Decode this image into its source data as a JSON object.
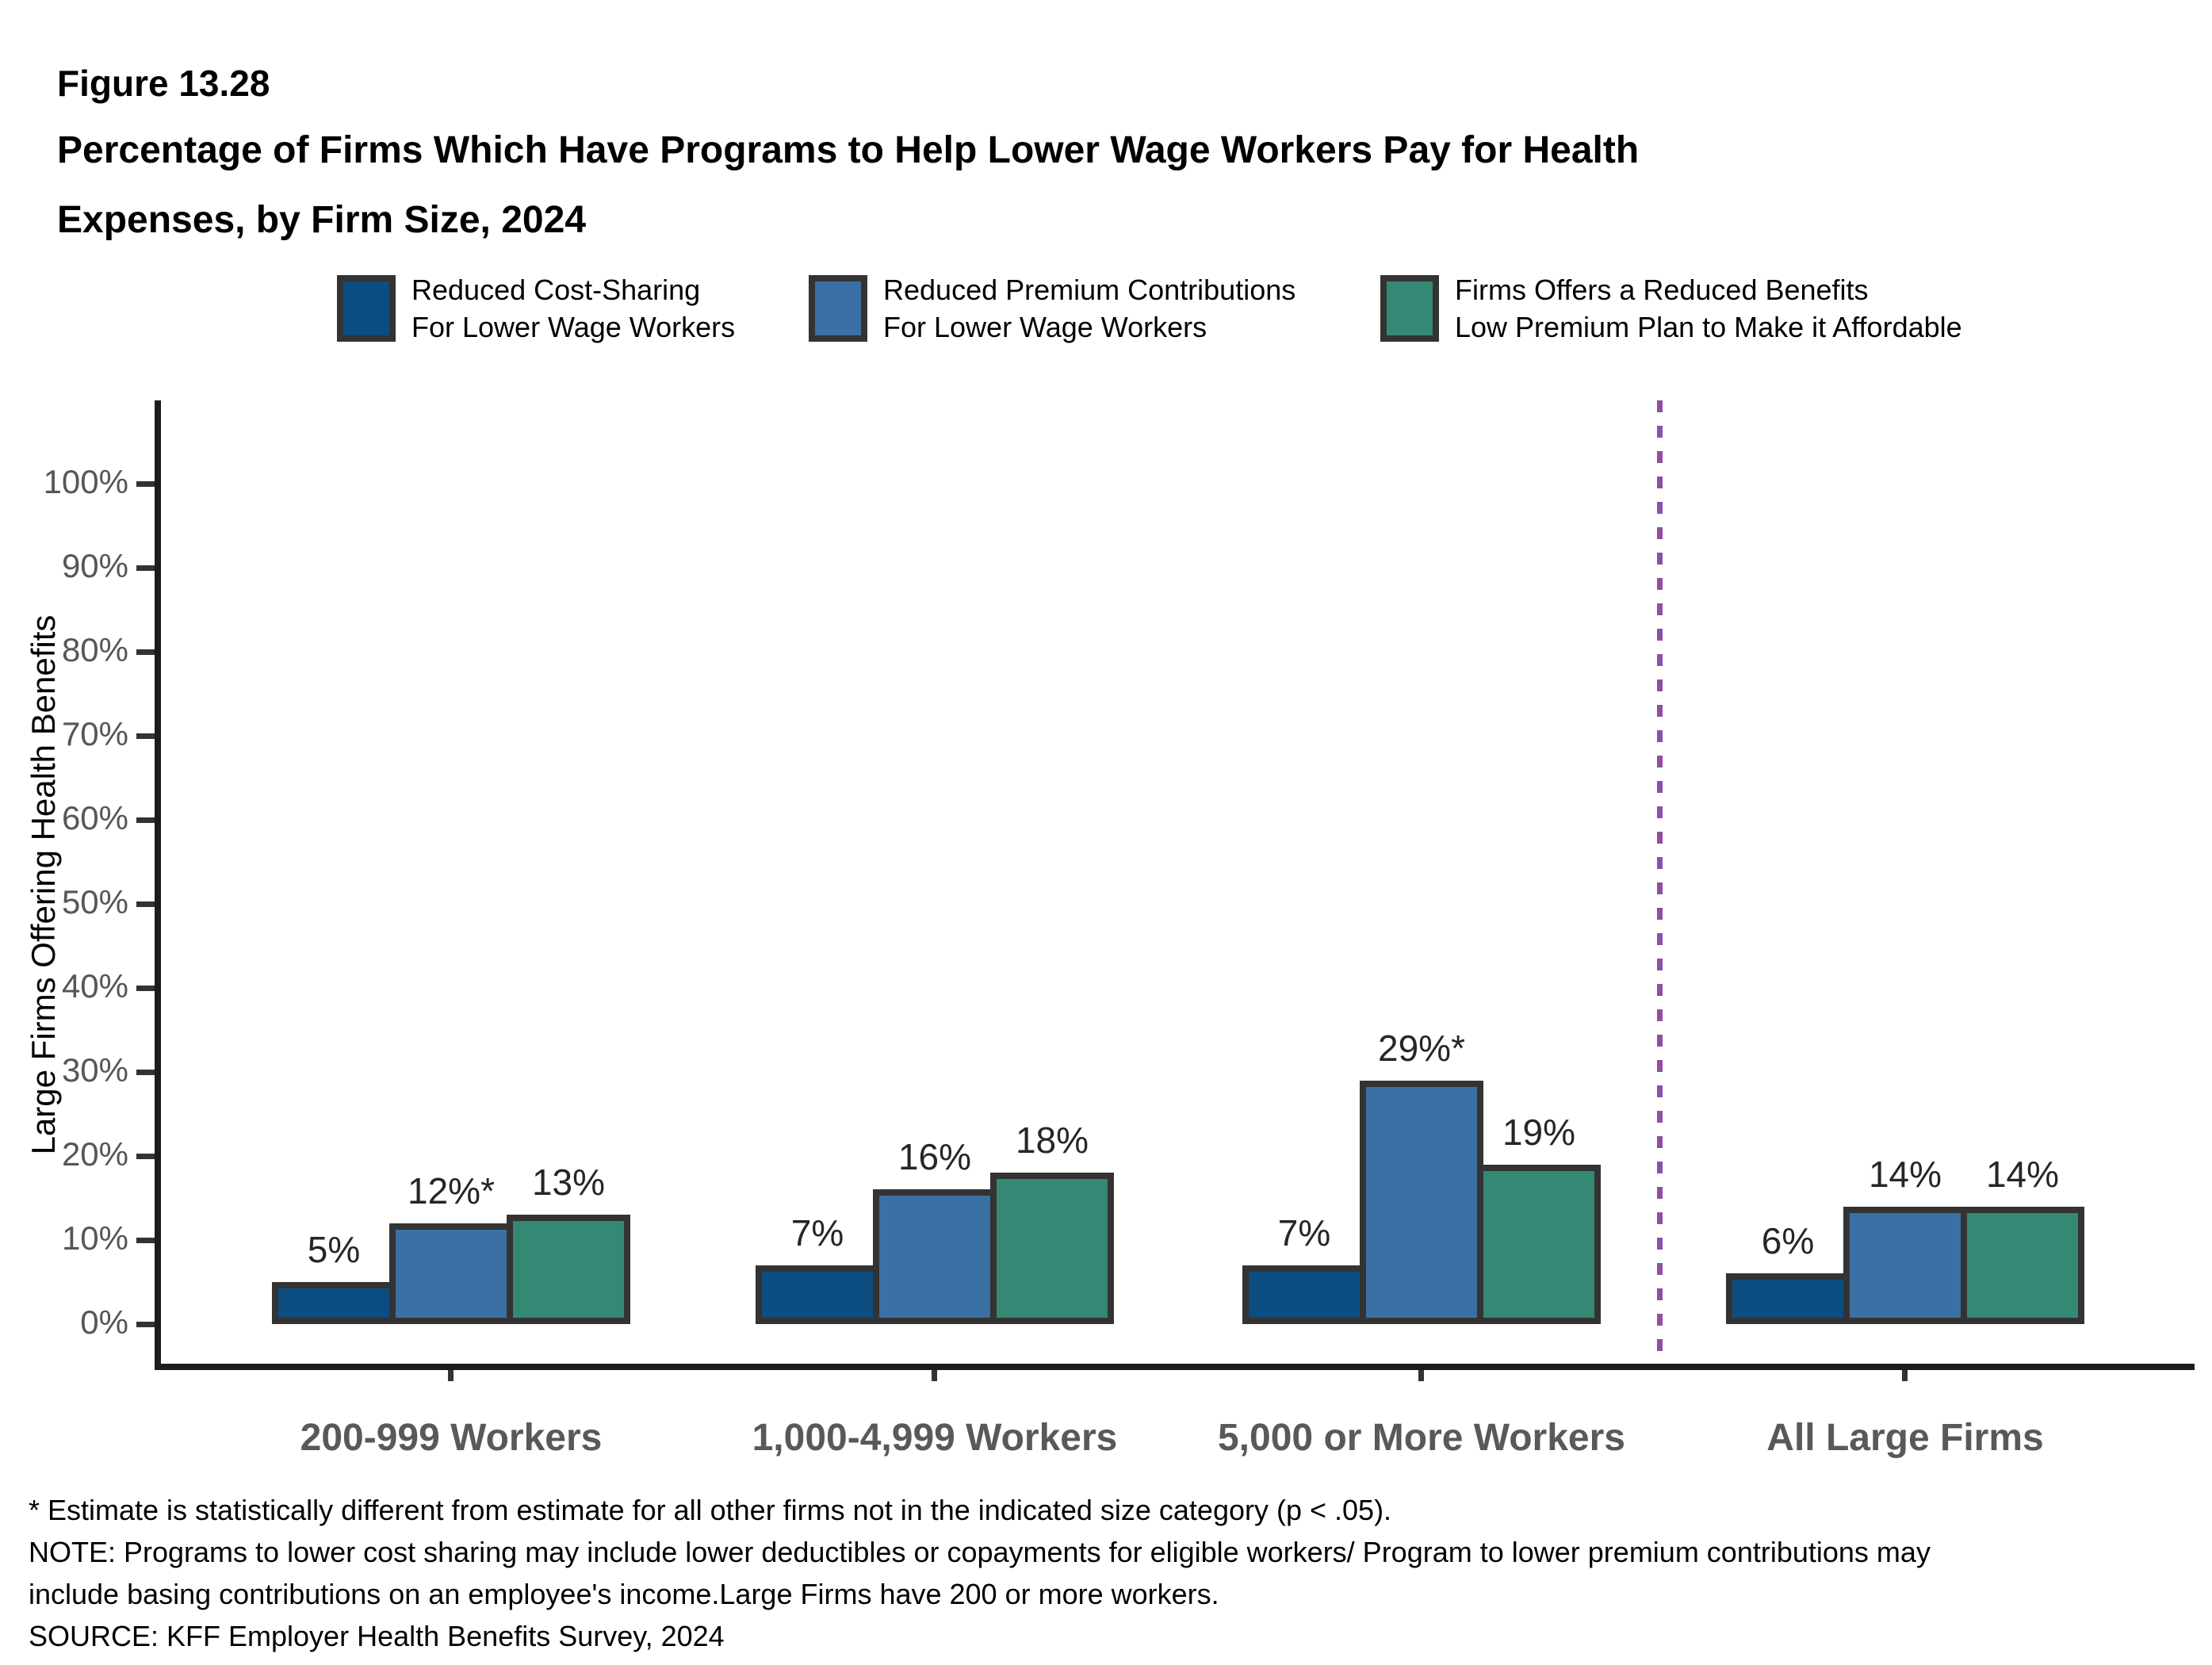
{
  "figure_label": "Figure 13.28",
  "title_lines": [
    "Percentage of Firms Which Have Programs to Help Lower Wage Workers Pay for Health",
    "Expenses, by Firm Size, 2024"
  ],
  "legend": {
    "items": [
      {
        "line1": "Reduced Cost-Sharing",
        "line2": "For Lower Wage Workers",
        "color": "#0c4d82"
      },
      {
        "line1": "Reduced Premium Contributions",
        "line2": "For Lower Wage Workers",
        "color": "#3b70a4"
      },
      {
        "line1": "Firms Offers a Reduced Benefits",
        "line2": "Low Premium Plan to Make it Affordable",
        "color": "#358873"
      }
    ]
  },
  "chart_data": {
    "type": "bar",
    "title": "Percentage of Firms Which Have Programs to Help Lower Wage Workers Pay for Health Expenses, by Firm Size, 2024",
    "figure_label": "Figure 13.28",
    "xlabel": "",
    "ylabel": "Large Firms Offering Health Benefits",
    "ylim": [
      0,
      100
    ],
    "grid": false,
    "legend_position": "top",
    "y_ticks": [
      "0%",
      "10%",
      "20%",
      "30%",
      "40%",
      "50%",
      "60%",
      "70%",
      "80%",
      "90%",
      "100%"
    ],
    "categories": [
      "200-999 Workers",
      "1,000-4,999 Workers",
      "5,000 or More Workers",
      "All Large Firms"
    ],
    "series": [
      {
        "name": "Reduced Cost-Sharing For Lower Wage Workers",
        "color": "#0c4d82",
        "values": [
          5,
          7,
          7,
          6
        ],
        "labels": [
          "5%",
          "7%",
          "7%",
          "6%"
        ]
      },
      {
        "name": "Reduced Premium Contributions For Lower Wage Workers",
        "color": "#3b70a4",
        "values": [
          12,
          16,
          29,
          14
        ],
        "labels": [
          "12%*",
          "16%",
          "29%*",
          "14%"
        ]
      },
      {
        "name": "Firms Offers a Reduced Benefits Low Premium Plan to Make it Affordable",
        "color": "#358873",
        "values": [
          13,
          18,
          19,
          14
        ],
        "labels": [
          "13%",
          "18%",
          "19%",
          "14%"
        ]
      }
    ],
    "separator": {
      "after_category": "5,000 or More Workers",
      "style": "dashed",
      "color": "#8e4fa5"
    }
  },
  "footnotes": {
    "line1": "* Estimate is statistically different from estimate for all other firms not in the indicated size category (p < .05).",
    "line2": "NOTE: Programs to lower cost sharing may include lower deductibles or copayments for eligible workers/ Program to lower premium contributions may",
    "line3": "include basing contributions on an employee's income.Large Firms have 200 or more workers.",
    "line4": "SOURCE: KFF Employer Health Benefits Survey, 2024"
  }
}
